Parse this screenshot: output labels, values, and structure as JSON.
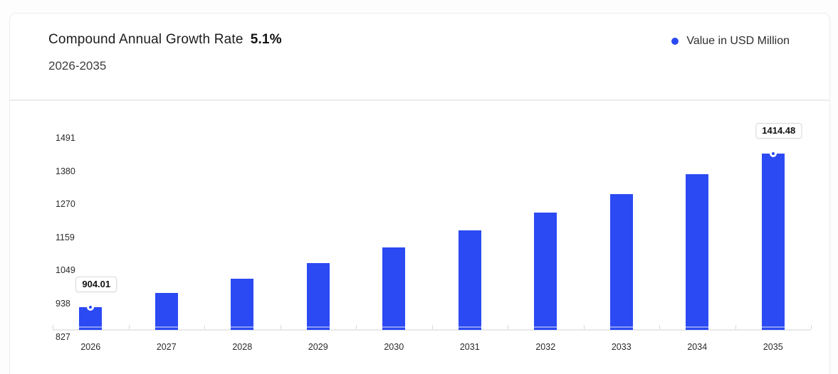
{
  "header": {
    "title": "Compound Annual Growth Rate",
    "cagr": "5.1%",
    "period": "2026-2035"
  },
  "legend": {
    "label": "Value in USD Million",
    "dot_color": "#2b4af3"
  },
  "chart_data": {
    "type": "bar",
    "title": "Compound Annual Growth Rate 5.1%, 2026-2035",
    "unit": "USD Million",
    "categories": [
      "2026",
      "2027",
      "2028",
      "2029",
      "2030",
      "2031",
      "2032",
      "2033",
      "2034",
      "2035"
    ],
    "values": [
      904.01,
      950.11,
      998.57,
      1049.5,
      1103.02,
      1159.28,
      1218.4,
      1280.54,
      1345.85,
      1414.48
    ],
    "series_name": "Value in USD Million",
    "y_ticks": [
      827,
      938,
      1049,
      1159,
      1270,
      1380,
      1491
    ],
    "ylim": [
      827,
      1491
    ],
    "annotations": [
      {
        "category": "2026",
        "label": "904.01"
      },
      {
        "category": "2035",
        "label": "1414.48"
      }
    ],
    "bar_color": "#2b4af3",
    "bar_stripe_color": "#8a9af7",
    "legend_position": "top-right",
    "grid": false
  }
}
